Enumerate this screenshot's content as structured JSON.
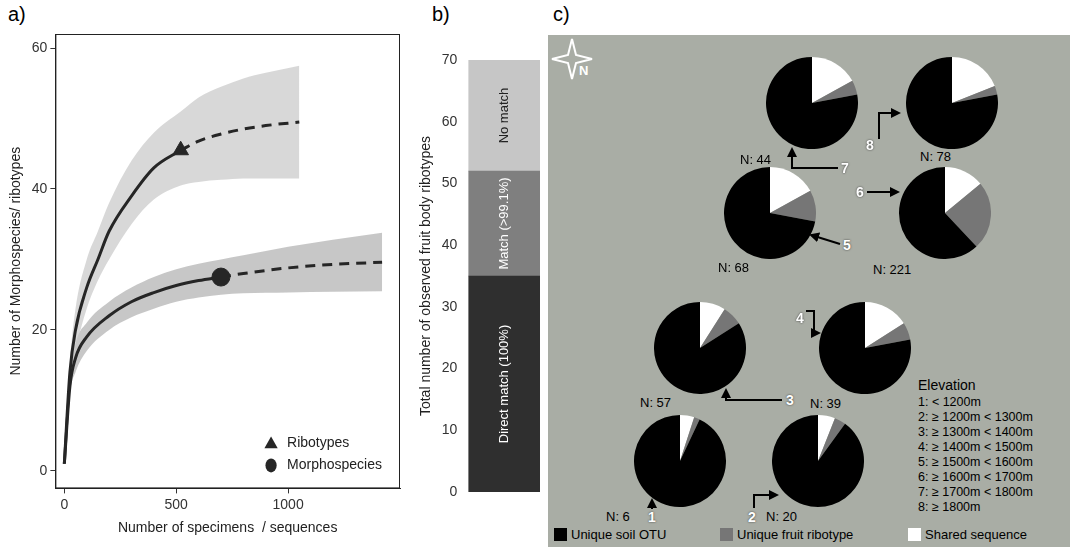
{
  "chart_data": [
    {
      "type": "line",
      "title": "a)",
      "x_label": "Number of specimens  / sequences",
      "y_label": "Number of Morphospecies/ ribotypes",
      "xlim": [
        -40,
        1500
      ],
      "xticks": [
        0,
        500,
        1000
      ],
      "ylim": [
        -2.5,
        62
      ],
      "yticks": [
        0,
        20,
        40,
        60
      ],
      "grid": false,
      "legend": "bottom-right",
      "series": [
        {
          "name": "Ribotypes",
          "color": "#262626",
          "marker": "triangle",
          "line_style": "solid",
          "x": [
            0,
            25,
            50,
            100,
            150,
            200,
            300,
            400,
            520,
            600,
            700,
            800,
            900,
            1050
          ],
          "values": [
            1,
            14,
            20,
            26,
            30,
            34,
            39,
            43,
            45.5,
            46.8,
            47.8,
            48.5,
            49,
            49.5
          ],
          "lower": [
            1,
            12.5,
            17,
            23,
            27,
            30,
            35,
            38.5,
            40.5,
            41,
            41.3,
            41.5,
            41.5,
            41.5
          ],
          "upper": [
            1,
            15.5,
            23,
            30,
            34,
            38,
            44,
            48,
            51,
            53,
            54.5,
            55.7,
            56.5,
            57.5
          ],
          "observed": {
            "x": 520,
            "y": 45.5
          }
        },
        {
          "name": "Morphospecies",
          "color": "#262626",
          "marker": "circle",
          "line_style": "solid",
          "x": [
            0,
            25,
            50,
            100,
            200,
            300,
            400,
            500,
            600,
            700,
            800,
            1000,
            1200,
            1420
          ],
          "values": [
            1,
            12,
            16,
            19,
            22,
            24,
            25.3,
            26.3,
            27,
            27.5,
            28,
            28.8,
            29.3,
            29.6
          ],
          "lower": [
            1,
            11,
            14,
            17,
            20,
            21.8,
            23,
            24,
            24.6,
            25,
            25.2,
            25.3,
            25.4,
            25.5
          ],
          "upper": [
            1,
            13,
            18,
            21,
            24,
            26,
            27.5,
            28.6,
            29.4,
            30,
            30.6,
            31.8,
            32.8,
            33.8
          ],
          "observed": {
            "x": 700,
            "y": 27.5
          }
        }
      ]
    },
    {
      "type": "bar",
      "title": "b)",
      "y_label": "Total number of observed fruit body ribotypes",
      "categories": [
        null
      ],
      "stacked": true,
      "tick_labels": "y",
      "ylim": [
        0,
        70
      ],
      "yticks": [
        0,
        10,
        20,
        30,
        40,
        50,
        60,
        70
      ],
      "series": [
        {
          "name": "Direct match (100%)",
          "color": "#2f2f2f",
          "values": [
            35
          ]
        },
        {
          "name": "Match (>99.1%)",
          "color": "#7f7f7f",
          "values": [
            17
          ]
        },
        {
          "name": "No match",
          "color": "#c6c6c6",
          "values": [
            18
          ]
        }
      ]
    },
    {
      "type": "pie",
      "title": "c)",
      "compass": "N",
      "categories": [
        "Unique soil OTU",
        "Unique fruit ribotype",
        "Shared sequence"
      ],
      "colors": [
        "#000000",
        "#767676",
        "#ffffff"
      ],
      "legend": "bottom",
      "elevation_title": "Elevation",
      "elevation_classes": [
        "1: < 1200m",
        "2: ≥ 1200m < 1300m",
        "3: ≥ 1300m < 1400m",
        "4: ≥ 1400m < 1500m",
        "5: ≥ 1500m < 1600m",
        "6: ≥ 1600m < 1700m",
        "7: ≥ 1700m < 1800m",
        "8: ≥ 1800m"
      ],
      "pies": [
        {
          "name": "1",
          "label": "N: 6",
          "values": [
            93,
            2,
            5
          ]
        },
        {
          "name": "2",
          "label": "N: 20",
          "values": [
            90,
            4,
            6
          ]
        },
        {
          "name": "3",
          "label": "N: 57",
          "values": [
            84,
            7,
            9
          ]
        },
        {
          "name": "4",
          "label": "N: 39",
          "values": [
            78,
            6,
            16
          ]
        },
        {
          "name": "5",
          "label": "N: 68",
          "values": [
            72,
            11,
            17
          ]
        },
        {
          "name": "6",
          "label": "N: 221",
          "values": [
            62,
            24,
            14
          ]
        },
        {
          "name": "7",
          "label": "N: 44",
          "values": [
            78,
            5,
            17
          ]
        },
        {
          "name": "8",
          "label": "N: 78",
          "values": [
            78,
            3,
            19
          ]
        }
      ]
    }
  ]
}
